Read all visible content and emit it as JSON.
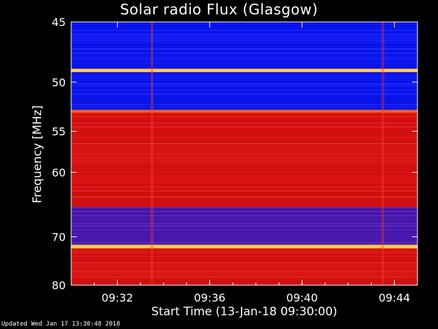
{
  "chart_data": {
    "type": "heatmap",
    "title": "Solar radio Flux (Glasgow)",
    "xlabel": "Start Time (13-Jan-18 09:30:00)",
    "ylabel": "Frequency [MHz]",
    "x_range": [
      "09:30:00",
      "09:45:00"
    ],
    "x_ticks": [
      "09:32",
      "09:36",
      "09:40",
      "09:44"
    ],
    "y_range": [
      45,
      80
    ],
    "y_ticks": [
      45,
      50,
      55,
      60,
      70,
      80
    ],
    "y_scale": "reciprocal",
    "colormap": [
      "#0000ff",
      "#ff0000",
      "#ffff00"
    ],
    "frequency_bands": [
      {
        "from": 45,
        "to": 48.8,
        "level": "low"
      },
      {
        "from": 48.8,
        "to": 49.1,
        "level": "high"
      },
      {
        "from": 49.1,
        "to": 52.7,
        "level": "low"
      },
      {
        "from": 52.7,
        "to": 53.0,
        "level": "medium-high"
      },
      {
        "from": 53.0,
        "to": 65.0,
        "level": "medium"
      },
      {
        "from": 65.0,
        "to": 71.5,
        "level": "low-medium"
      },
      {
        "from": 71.5,
        "to": 72.2,
        "level": "high"
      },
      {
        "from": 72.2,
        "to": 80,
        "level": "medium"
      }
    ],
    "events": [
      {
        "time": "09:33:30",
        "type": "vertical-spike"
      },
      {
        "time": "09:43:30",
        "type": "vertical-spike"
      }
    ]
  },
  "footer": {
    "updated": "Updated Wed Jan 17 13:30:48 2018"
  }
}
